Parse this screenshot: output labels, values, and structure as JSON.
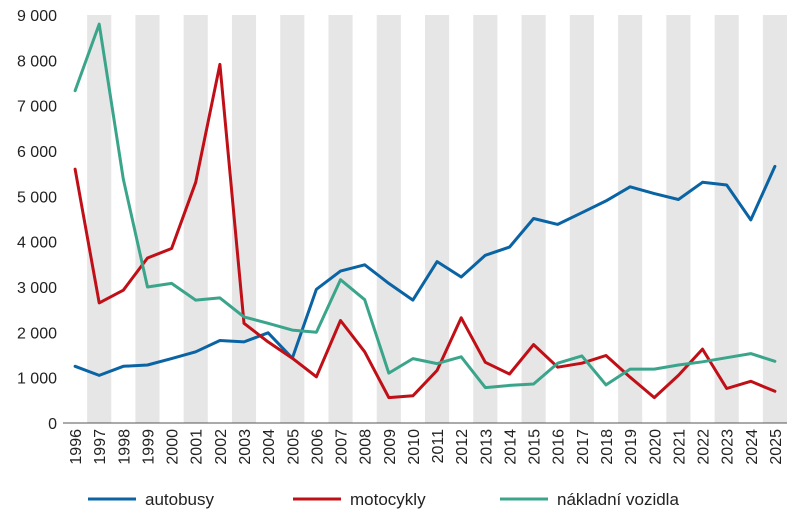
{
  "chart_data": {
    "type": "line",
    "title": "",
    "xlabel": "",
    "ylabel": "",
    "x": [
      "1996",
      "1997",
      "1998",
      "1999",
      "2000",
      "2001",
      "2002",
      "2003",
      "2004",
      "2005",
      "2006",
      "2007",
      "2008",
      "2009",
      "2010",
      "2011",
      "2012",
      "2013",
      "2014",
      "2015",
      "2016",
      "2017",
      "2018",
      "2019",
      "2020",
      "2021",
      "2022",
      "2023",
      "2024",
      "2025"
    ],
    "ylim": [
      0,
      9000
    ],
    "yticks": [
      0,
      1000,
      2000,
      3000,
      4000,
      5000,
      6000,
      7000,
      8000,
      9000
    ],
    "ytick_labels": [
      "0",
      "1 000",
      "2 000",
      "3 000",
      "4 000",
      "5 000",
      "6 000",
      "7 000",
      "8 000",
      "9 000"
    ],
    "grid": "alternating vertical bands",
    "band_color": "#e6e6e6",
    "legend_position": "bottom",
    "series": [
      {
        "name": "autobusy",
        "color": "#0a64a4",
        "values": [
          1250,
          1050,
          1250,
          1280,
          1420,
          1570,
          1820,
          1790,
          1990,
          1430,
          2950,
          3350,
          3490,
          3080,
          2710,
          3560,
          3220,
          3700,
          3880,
          4510,
          4380,
          4640,
          4900,
          5210,
          5060,
          4930,
          5310,
          5250,
          4480,
          5660
        ]
      },
      {
        "name": "motocykly",
        "color": "#c00f16",
        "values": [
          5600,
          2650,
          2930,
          3640,
          3850,
          5310,
          7910,
          2200,
          1790,
          1430,
          1020,
          2260,
          1570,
          560,
          600,
          1160,
          2320,
          1340,
          1080,
          1730,
          1230,
          1320,
          1490,
          1010,
          560,
          1050,
          1630,
          760,
          920,
          700
        ]
      },
      {
        "name": "nákladní vozidla",
        "color": "#3ba58c",
        "values": [
          7330,
          8800,
          5380,
          3000,
          3080,
          2710,
          2760,
          2340,
          2200,
          2050,
          2000,
          3160,
          2720,
          1100,
          1420,
          1310,
          1460,
          780,
          830,
          860,
          1320,
          1480,
          840,
          1190,
          1190,
          1280,
          1350,
          1440,
          1530,
          1360
        ]
      }
    ]
  }
}
